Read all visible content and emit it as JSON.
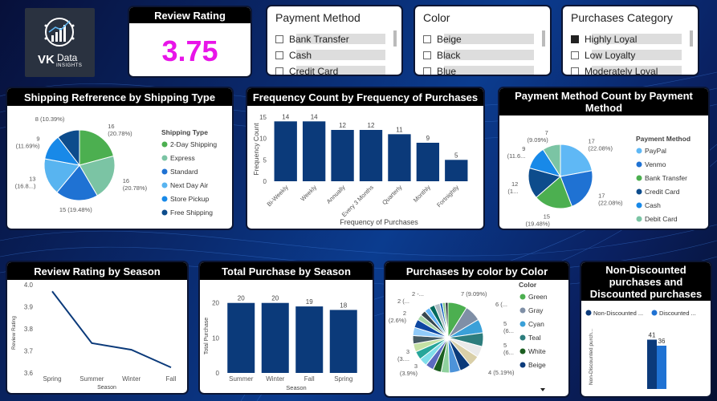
{
  "logo": {
    "line1": "VK",
    "line2": "Data",
    "line3": "INSIGHTS"
  },
  "kpi": {
    "title": "Review Rating",
    "value": "3.75"
  },
  "colors": {
    "dark_blue": "#0b3a7a",
    "green": "#4caf50",
    "kpi_value": "#e815e8"
  },
  "slicers": {
    "payment": {
      "title": "Payment Method",
      "items": [
        {
          "label": "Bank Transfer",
          "checked": false
        },
        {
          "label": "Cash",
          "checked": false
        },
        {
          "label": "Credit Card",
          "checked": false
        }
      ]
    },
    "color": {
      "title": "Color",
      "items": [
        {
          "label": "Beige",
          "checked": false
        },
        {
          "label": "Black",
          "checked": false
        },
        {
          "label": "Blue",
          "checked": false
        }
      ]
    },
    "category": {
      "title": "Purchases Category",
      "items": [
        {
          "label": "Highly Loyal",
          "checked": true
        },
        {
          "label": "Low Loyalty",
          "checked": false
        },
        {
          "label": "Moderately Loyal",
          "checked": false
        }
      ]
    }
  },
  "chart_data": [
    {
      "id": "shipping",
      "type": "pie",
      "title": "Shipping Refrerence by Shipping Type",
      "legend_title": "Shipping Type",
      "slices": [
        {
          "label": "2-Day Shipping",
          "value": 16,
          "pct_label": "16\n(20.78%)",
          "color": "#4caf50"
        },
        {
          "label": "Express",
          "value": 16,
          "pct_label": "16\n(20.78%)",
          "color": "#7bc4a4"
        },
        {
          "label": "Standard",
          "value": 15,
          "pct_label": "15 (19.48%)",
          "color": "#1f72d3"
        },
        {
          "label": "Next Day Air",
          "value": 13,
          "pct_label": "13\n(16.8...)",
          "color": "#58b4f0"
        },
        {
          "label": "Store Pickup",
          "value": 9,
          "pct_label": "9\n(11.69%)",
          "color": "#1889e8"
        },
        {
          "label": "Free Shipping",
          "value": 8,
          "pct_label": "8 (10.39%)",
          "color": "#0d4c8c"
        }
      ]
    },
    {
      "id": "frequency",
      "type": "bar",
      "title": "Frequency Count by Frequency of Purchases",
      "xlabel": "Frequency of Purchases",
      "ylabel": "Frequency Count",
      "ylim": [
        0,
        15
      ],
      "yticks": [
        0,
        5,
        10,
        15
      ],
      "categories": [
        "Bi-Weekly",
        "Weekly",
        "Annually",
        "Every 3 Months",
        "Quarterly",
        "Monthly",
        "Fortnightly"
      ],
      "values": [
        14,
        14,
        12,
        12,
        11,
        9,
        5
      ]
    },
    {
      "id": "payment_count",
      "type": "pie",
      "title": "Payment Method Count by Payment Method",
      "legend_title": "Payment Method",
      "slices": [
        {
          "label": "PayPal",
          "value": 17,
          "pct_label": "17\n(22.08%)",
          "color": "#5fb8f5"
        },
        {
          "label": "Venmo",
          "value": 17,
          "pct_label": "17\n(22.08%)",
          "color": "#1f72d3"
        },
        {
          "label": "Bank Transfer",
          "value": 15,
          "pct_label": "15\n(19.48%)",
          "color": "#4caf50"
        },
        {
          "label": "Credit Card",
          "value": 12,
          "pct_label": "12\n(1...",
          "color": "#0d4c8c"
        },
        {
          "label": "Cash",
          "value": 9,
          "pct_label": "9\n(11.6...",
          "color": "#1889e8"
        },
        {
          "label": "Debit Card",
          "value": 7,
          "pct_label": "7\n(9.09%)",
          "color": "#7bc4a4"
        }
      ]
    },
    {
      "id": "season_rating",
      "type": "line",
      "title": "Review Rating by Season",
      "xlabel": "Season",
      "ylabel": "Review Rating",
      "ylim": [
        3.6,
        4.0
      ],
      "yticks": [
        "4.0",
        "3.9",
        "3.8",
        "3.7",
        "3.6"
      ],
      "categories": [
        "Spring",
        "Summer",
        "Winter",
        "Fall"
      ],
      "values": [
        3.97,
        3.735,
        3.705,
        3.625
      ]
    },
    {
      "id": "season_purchase",
      "type": "bar",
      "title": "Total Purchase by Season",
      "xlabel": "Season",
      "ylabel": "Total Purchase",
      "ylim": [
        0,
        20
      ],
      "yticks": [
        0,
        10,
        20
      ],
      "categories": [
        "Summer",
        "Winter",
        "Fall",
        "Spring"
      ],
      "values": [
        20,
        20,
        19,
        18
      ]
    },
    {
      "id": "color_purchases",
      "type": "pie",
      "title": "Purchases by color by Color",
      "legend_title": "Color",
      "legend": [
        "Green",
        "Gray",
        "Cyan",
        "Teal",
        "White",
        "Beige"
      ],
      "outer_labels": [
        "7 (9.09%)",
        "6 (...",
        "5\n(6...",
        "5\n(6...",
        "4 (5.19%)",
        "3\n(3.9%)",
        "3\n(3....",
        "2\n(2.6%)",
        "2 (...",
        "2 -..."
      ],
      "values": [
        7,
        6,
        5,
        5,
        4,
        4,
        4,
        4,
        3,
        3,
        3,
        3,
        3,
        3,
        3,
        3,
        3,
        2,
        2,
        2,
        2,
        2,
        1,
        1,
        1
      ],
      "colors": [
        "#4caf50",
        "#7f8fa6",
        "#3aa0d8",
        "#2d7d7d",
        "#eaeaea",
        "#d9cfa8",
        "#0b3a7a",
        "#4d93d9",
        "#8fd19e",
        "#1b5e20",
        "#5c6bc0",
        "#80deea",
        "#26a69a",
        "#c5e1a5",
        "#455a64",
        "#90caf9",
        "#0d47a1",
        "#a5d6a7",
        "#37474f",
        "#64b5f6",
        "#00695c",
        "#b0bec5",
        "#1565c0",
        "#81c784",
        "#263238"
      ]
    },
    {
      "id": "discount",
      "type": "bar",
      "title": "Non-Discounted purchases and Discounted purchases",
      "ylabel": "Non-Discounted purch...",
      "series": [
        {
          "name": "Non-Discounted ...",
          "values": [
            41
          ],
          "color": "#0b3a7a"
        },
        {
          "name": "Discounted ...",
          "values": [
            36
          ],
          "color": "#1f72d3"
        }
      ]
    }
  ]
}
